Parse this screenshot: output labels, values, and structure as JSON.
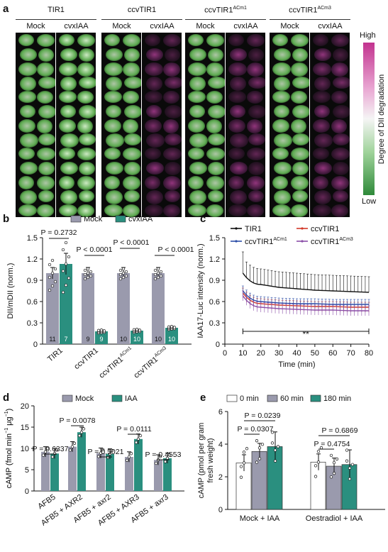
{
  "panel_a": {
    "letter": "a",
    "groups": [
      {
        "title": "TIR1",
        "sup": "",
        "mock": "Mock",
        "treat": "cvxIAA"
      },
      {
        "title": "ccvTIR1",
        "sup": "",
        "mock": "Mock",
        "treat": "cvxIAA"
      },
      {
        "title": "ccvTIR1",
        "sup": "ACm1",
        "mock": "Mock",
        "treat": "cvxIAA"
      },
      {
        "title": "ccvTIR1",
        "sup": "ACm3",
        "mock": "Mock",
        "treat": "cvxIAA"
      }
    ],
    "colorbar": {
      "high": "High",
      "low": "Low",
      "label": "Degree of DII degradation",
      "color_high": "#c2338f",
      "color_low": "#2f8a3a"
    }
  },
  "panel_b": {
    "letter": "b",
    "legend": {
      "mock": "Mock",
      "treat": "cvxIAA"
    },
    "colors": {
      "mock": "#9a9aad",
      "treat": "#2a8f7f"
    },
    "ylabel": "DII/mDII (norm.)",
    "yticks": [
      "0",
      "0.3",
      "0.6",
      "0.9",
      "1.2",
      "1.5"
    ],
    "pvalues": [
      "P = 0.2732",
      "P < 0.0001",
      "P < 0.0001",
      "P < 0.0001"
    ],
    "categories": [
      "TIR1",
      "ccvTIR1",
      "ccvTIR1",
      "ccvTIR1"
    ],
    "category_sups": [
      "",
      "",
      "ACm1",
      "ACm3"
    ],
    "mock_n": [
      "11",
      "9",
      "10",
      "10"
    ],
    "treat_n": [
      "7",
      "9",
      "10",
      "10"
    ]
  },
  "panel_c": {
    "letter": "c",
    "ylabel": "IAA17-Luc intensity (norm.)",
    "xlabel": "Time (min)",
    "yticks": [
      "0",
      "0.3",
      "0.6",
      "0.9",
      "1.2",
      "1.5"
    ],
    "xticks": [
      "0",
      "10",
      "20",
      "30",
      "40",
      "50",
      "60",
      "70",
      "80"
    ],
    "legend": [
      {
        "name": "TIR1",
        "sup": "",
        "color": "#111111"
      },
      {
        "name": "ccvTIR1",
        "sup": "",
        "color": "#d23a2a"
      },
      {
        "name": "ccvTIR1",
        "sup": "ACm1",
        "color": "#2d4fa8"
      },
      {
        "name": "ccvTIR1",
        "sup": "ACm3",
        "color": "#8a4fa8"
      }
    ],
    "sig": "**"
  },
  "panel_d": {
    "letter": "d",
    "legend": {
      "mock": "Mock",
      "treat": "IAA"
    },
    "colors": {
      "mock": "#9a9aad",
      "treat": "#2a8f7f"
    },
    "ylabel_main": "cAMP (fmol min",
    "ylabel_sup1": "−1",
    "ylabel_mid": " μg",
    "ylabel_sup2": "−1",
    "ylabel_end": ")",
    "yticks": [
      "0",
      "5",
      "10",
      "15",
      "20"
    ],
    "pvalues": [
      "P = 0.6337",
      "P = 0.0078",
      "P = 0.5021",
      "P = 0.0111",
      "P = 0.4553"
    ],
    "categories": [
      "AFB5",
      "AFB5 + AXR2",
      "AFB5 + axr2",
      "AFB5 + AXR3",
      "AFB5 + axr3"
    ]
  },
  "panel_e": {
    "letter": "e",
    "legend": [
      "0 min",
      "60 min",
      "180 min"
    ],
    "colors": [
      "#ffffff",
      "#9a9aad",
      "#2a8f7f"
    ],
    "ylabel1": "cAMP (pmol per gram",
    "ylabel2": "fresh weight)",
    "yticks": [
      "0",
      "2",
      "4",
      "6"
    ],
    "pvalues": [
      "P = 0.0239",
      "P = 0.0307",
      "P = 0.6869",
      "P = 0.4754"
    ],
    "categories": [
      "Mock + IAA",
      "Oestradiol + IAA"
    ]
  },
  "chart_data": [
    {
      "type": "bar",
      "panel": "b",
      "categories": [
        "TIR1",
        "ccvTIR1",
        "ccvTIR1ACm1",
        "ccvTIR1ACm3"
      ],
      "series": [
        {
          "name": "Mock",
          "values": [
            1.0,
            1.0,
            1.0,
            1.0
          ]
        },
        {
          "name": "cvxIAA",
          "values": [
            1.13,
            0.18,
            0.19,
            0.23
          ]
        }
      ],
      "ylabel": "DII/mDII (norm.)",
      "ylim": [
        0,
        1.5
      ]
    },
    {
      "type": "line",
      "panel": "c",
      "x": [
        10,
        20,
        30,
        40,
        50,
        60,
        70,
        80
      ],
      "series": [
        {
          "name": "TIR1",
          "values": [
            1.0,
            0.84,
            0.8,
            0.78,
            0.76,
            0.75,
            0.74,
            0.73
          ]
        },
        {
          "name": "ccvTIR1",
          "values": [
            0.72,
            0.57,
            0.55,
            0.54,
            0.53,
            0.53,
            0.52,
            0.52
          ]
        },
        {
          "name": "ccvTIR1ACm1",
          "values": [
            0.75,
            0.6,
            0.58,
            0.57,
            0.57,
            0.56,
            0.56,
            0.56
          ]
        },
        {
          "name": "ccvTIR1ACm3",
          "values": [
            0.68,
            0.52,
            0.5,
            0.49,
            0.48,
            0.48,
            0.47,
            0.47
          ]
        }
      ],
      "xlabel": "Time (min)",
      "ylabel": "IAA17-Luc intensity (norm.)",
      "xlim": [
        0,
        80
      ],
      "ylim": [
        0,
        1.5
      ]
    },
    {
      "type": "bar",
      "panel": "d",
      "categories": [
        "AFB5",
        "AFB5 + AXR2",
        "AFB5 + axr2",
        "AFB5 + AXR3",
        "AFB5 + axr3"
      ],
      "series": [
        {
          "name": "Mock",
          "values": [
            9.2,
            10.4,
            8.9,
            8.0,
            7.3
          ]
        },
        {
          "name": "IAA",
          "values": [
            8.8,
            13.8,
            8.7,
            12.2,
            7.7
          ]
        }
      ],
      "ylim": [
        0,
        20
      ]
    },
    {
      "type": "bar",
      "panel": "e",
      "categories": [
        "Mock + IAA",
        "Oestradiol + IAA"
      ],
      "series": [
        {
          "name": "0 min",
          "values": [
            2.85,
            2.9
          ]
        },
        {
          "name": "60 min",
          "values": [
            3.55,
            2.65
          ]
        },
        {
          "name": "180 min",
          "values": [
            3.85,
            2.75
          ]
        }
      ],
      "ylim": [
        0,
        6
      ]
    }
  ]
}
